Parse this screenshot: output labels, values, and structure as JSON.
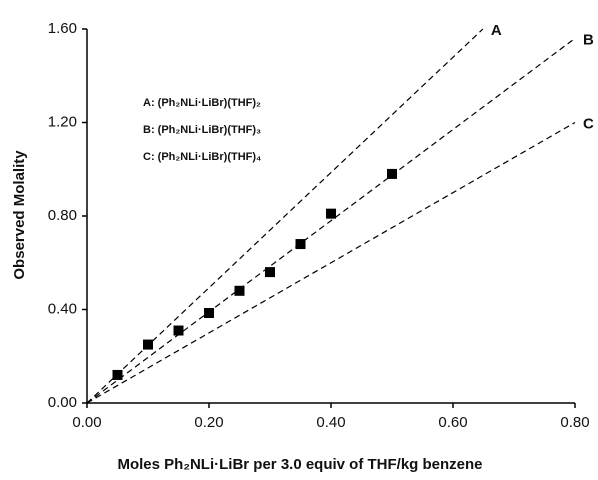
{
  "chart_data": {
    "type": "scatter",
    "x_label": "Moles Ph₂NLi·LiBr per 3.0 equiv of THF/kg benzene",
    "y_label": "Observed Molality",
    "xlim": [
      0,
      0.8
    ],
    "ylim": [
      0,
      1.6
    ],
    "xticks": [
      {
        "value": 0,
        "label": "0.00"
      },
      {
        "value": 0.2,
        "label": "0.20"
      },
      {
        "value": 0.4,
        "label": "0.40"
      },
      {
        "value": 0.6,
        "label": "0.60"
      },
      {
        "value": 0.8,
        "label": "0.80"
      }
    ],
    "yticks": [
      {
        "value": 0,
        "label": "0.00"
      },
      {
        "value": 0.4,
        "label": "0.40"
      },
      {
        "value": 0.8,
        "label": "0.80"
      },
      {
        "value": 1.2,
        "label": "1.20"
      },
      {
        "value": 1.6,
        "label": "1.60"
      }
    ],
    "series": [
      {
        "name": "A",
        "legend": "A:  (Ph₂NLi·LiBr)(THF)₂",
        "style": "dashed",
        "color": "#000000",
        "x": [
          0,
          0.649
        ],
        "values": [
          0,
          1.6
        ]
      },
      {
        "name": "B",
        "legend": "B:  (Ph₂NLi·LiBr)(THF)₃",
        "style": "dashed",
        "color": "#000000",
        "x": [
          0,
          0.8
        ],
        "values": [
          0,
          1.56
        ]
      },
      {
        "name": "C",
        "legend": "C:  (Ph₂NLi·LiBr)(THF)₄",
        "style": "dashed",
        "color": "#000000",
        "x": [
          0,
          0.8
        ],
        "values": [
          0,
          1.2
        ]
      },
      {
        "style": "square",
        "color": "#000000",
        "x": [
          0.05,
          0.1,
          0.15,
          0.2,
          0.25,
          0.3,
          0.35,
          0.4,
          0.5
        ],
        "values": [
          0.12,
          0.25,
          0.31,
          0.385,
          0.48,
          0.56,
          0.68,
          0.81,
          0.98
        ]
      }
    ]
  }
}
